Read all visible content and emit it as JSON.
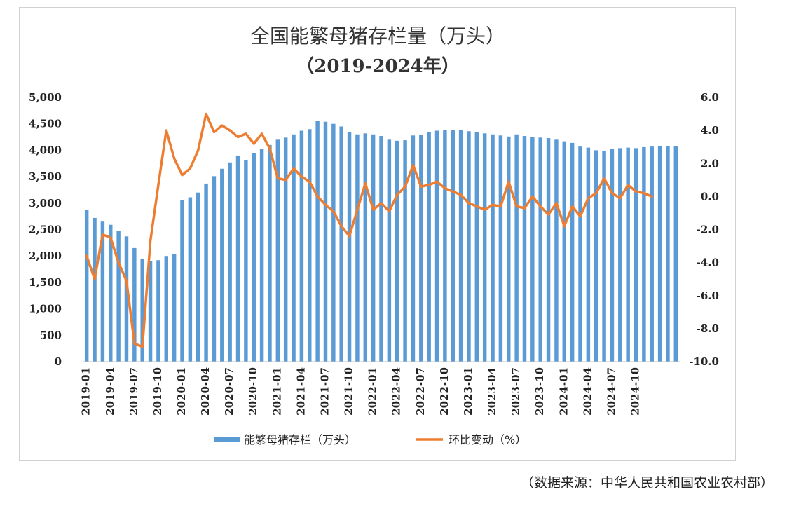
{
  "chart_data": {
    "type": "bar+line",
    "title": "全国能繁母猪存栏量（万头）",
    "subtitle": "（2019-2024年）",
    "y_left": {
      "min": 0,
      "max": 5000,
      "ticks": [
        "0",
        "500",
        "1,000",
        "1,500",
        "2,000",
        "2,500",
        "3,000",
        "3,500",
        "4,000",
        "4,500",
        "5,000"
      ]
    },
    "y_right": {
      "min": -10,
      "max": 6,
      "ticks": [
        "-10.0",
        "-8.0",
        "-6.0",
        "-4.0",
        "-2.0",
        "0.0",
        "2.0",
        "4.0",
        "6.0"
      ]
    },
    "x_tick_labels": [
      "2019-01",
      "2019-04",
      "2019-07",
      "2019-10",
      "2020-01",
      "2020-04",
      "2020-07",
      "2020-10",
      "2021-01",
      "2021-04",
      "2021-07",
      "2021-10",
      "2022-01",
      "2022-04",
      "2022-07",
      "2022-10",
      "2023-01",
      "2023-04",
      "2023-07",
      "2023-10",
      "2024-01",
      "2024-04",
      "2024-07",
      "2024-10"
    ],
    "grid": false,
    "legend_position": "bottom",
    "series": [
      {
        "name": "能繁母猪存栏（万头）",
        "kind": "bar",
        "axis": "left",
        "color": "#5b9bd5",
        "values": [
          2870,
          2720,
          2650,
          2590,
          2480,
          2370,
          2150,
          1950,
          1900,
          1920,
          2000,
          2030,
          3060,
          3110,
          3200,
          3370,
          3510,
          3650,
          3770,
          3900,
          3820,
          3950,
          4020,
          4100,
          4200,
          4240,
          4300,
          4370,
          4400,
          4560,
          4540,
          4500,
          4450,
          4350,
          4300,
          4320,
          4300,
          4270,
          4200,
          4180,
          4190,
          4280,
          4290,
          4350,
          4370,
          4380,
          4380,
          4380,
          4360,
          4340,
          4320,
          4300,
          4280,
          4260,
          4300,
          4270,
          4250,
          4240,
          4230,
          4200,
          4170,
          4140,
          4070,
          4050,
          4000,
          3990,
          4020,
          4040,
          4050,
          4040,
          4060,
          4070,
          4080,
          4080,
          4080
        ],
        "vis_count": 72
      },
      {
        "name": "环比变动（%）",
        "kind": "line",
        "axis": "right",
        "color": "#ed7d31",
        "values": [
          -3.6,
          -5.0,
          -2.3,
          -2.5,
          -4.0,
          -5.1,
          -8.9,
          -9.1,
          -2.7,
          0.7,
          4.0,
          2.3,
          1.3,
          1.7,
          2.8,
          5.0,
          3.9,
          4.3,
          4.0,
          3.6,
          3.8,
          3.2,
          3.8,
          2.9,
          1.1,
          1.0,
          1.7,
          1.2,
          0.9,
          0.0,
          -0.5,
          -0.9,
          -1.8,
          -2.4,
          -0.8,
          0.8,
          -0.8,
          -0.4,
          -0.9,
          0.1,
          0.6,
          1.9,
          0.6,
          0.7,
          0.9,
          0.5,
          0.3,
          0.1,
          -0.4,
          -0.6,
          -0.8,
          -0.5,
          -0.6,
          0.9,
          -0.6,
          -0.7,
          0.0,
          -0.6,
          -1.1,
          -0.4,
          -1.8,
          -0.6,
          -1.2,
          -0.1,
          0.2,
          1.1,
          0.2,
          -0.1,
          0.7,
          0.3,
          0.2,
          0.0
        ]
      }
    ]
  },
  "source_note": "（数据来源：中华人民共和国农业农村部）"
}
